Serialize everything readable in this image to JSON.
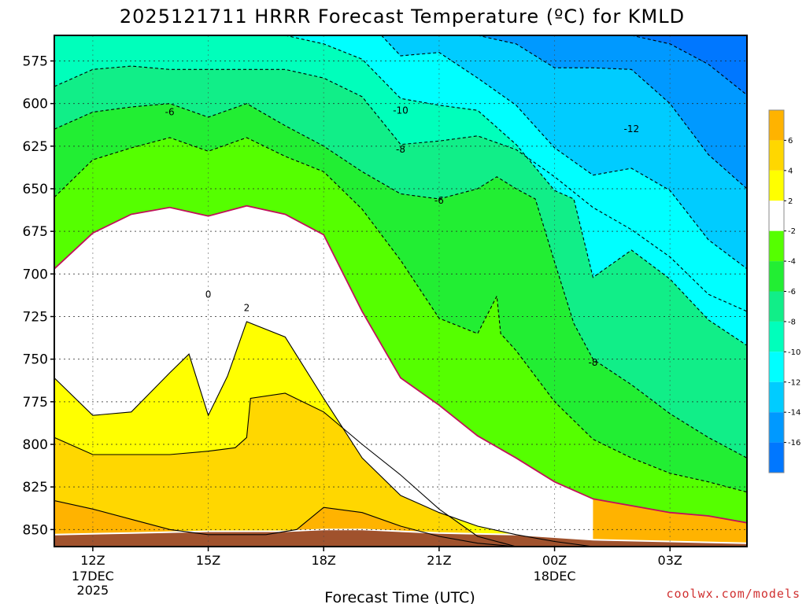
{
  "chart_data": {
    "type": "time-height contour",
    "title": "2025121711 HRRR Forecast Temperature (ºC) for KMLD",
    "xlabel": "Forecast Time (UTC)",
    "ylabel": "",
    "y_axis": {
      "ticks": [
        575,
        600,
        625,
        650,
        675,
        700,
        725,
        750,
        775,
        800,
        825,
        850
      ],
      "range": [
        860,
        560
      ],
      "inverted": true
    },
    "x_axis": {
      "ticks": [
        {
          "hour": 12,
          "label": "12Z",
          "date": "17DEC",
          "year": "2025"
        },
        {
          "hour": 15,
          "label": "15Z",
          "date": "",
          "year": ""
        },
        {
          "hour": 18,
          "label": "18Z",
          "date": "",
          "year": ""
        },
        {
          "hour": 21,
          "label": "21Z",
          "date": "",
          "year": ""
        },
        {
          "hour": 24,
          "label": "00Z",
          "date": "18DEC",
          "year": ""
        },
        {
          "hour": 27,
          "label": "03Z",
          "date": "",
          "year": ""
        }
      ],
      "range": [
        11,
        29
      ]
    },
    "grid": "dotted",
    "colorbar": {
      "placement": "right",
      "labels": [
        "6",
        "4",
        "2",
        "-2",
        "-4",
        "-6",
        "-8",
        "-10",
        "-12",
        "-14",
        "-16"
      ],
      "colors": [
        "#ffb300",
        "#ffd700",
        "#ffff00",
        "#ffffff",
        "#55ff00",
        "#22ee33",
        "#11ee88",
        "#00ffbb",
        "#00ffff",
        "#00ccff",
        "#0099ff",
        "#0077ff"
      ]
    },
    "contours": [
      {
        "value": 6,
        "color": "#ffb300",
        "points": [
          [
            11.0,
            833
          ],
          [
            12.0,
            838
          ],
          [
            13.0,
            844
          ],
          [
            14.0,
            850
          ],
          [
            15.0,
            853
          ],
          [
            16.5,
            853
          ],
          [
            17.3,
            850
          ],
          [
            18.0,
            837
          ],
          [
            19.0,
            840
          ],
          [
            20.0,
            848
          ],
          [
            21.0,
            854
          ],
          [
            22.0,
            858
          ],
          [
            23.0,
            860
          ]
        ]
      },
      {
        "value": 4,
        "color": "#ffd700",
        "points": [
          [
            11.0,
            796
          ],
          [
            12.0,
            806
          ],
          [
            14.0,
            806
          ],
          [
            15.0,
            804
          ],
          [
            15.7,
            802
          ],
          [
            16.0,
            796
          ],
          [
            16.1,
            773
          ],
          [
            17.0,
            770
          ],
          [
            18.0,
            781
          ],
          [
            19.0,
            800
          ],
          [
            20.0,
            818
          ],
          [
            21.0,
            838
          ],
          [
            22.0,
            854
          ],
          [
            23.0,
            860
          ]
        ]
      },
      {
        "value": 2,
        "color": "#ffff00",
        "points": [
          [
            11.0,
            761
          ],
          [
            12.0,
            783
          ],
          [
            13.0,
            781
          ],
          [
            14.0,
            758
          ],
          [
            14.5,
            747
          ],
          [
            15.0,
            783
          ],
          [
            15.5,
            760
          ],
          [
            16.0,
            728
          ],
          [
            17.0,
            737
          ],
          [
            18.0,
            773
          ],
          [
            19.0,
            808
          ],
          [
            20.0,
            830
          ],
          [
            21.0,
            840
          ],
          [
            22.0,
            848
          ],
          [
            23.0,
            853
          ],
          [
            24.0,
            857
          ],
          [
            25.0,
            860
          ]
        ]
      },
      {
        "value": 0,
        "color": "#ffffff",
        "points": [
          [
            11.0,
            697
          ],
          [
            12.0,
            676
          ],
          [
            13.0,
            665
          ],
          [
            14.0,
            661
          ],
          [
            15.0,
            666
          ],
          [
            16.0,
            660
          ],
          [
            17.0,
            665
          ],
          [
            18.0,
            677
          ],
          [
            19.0,
            722
          ],
          [
            20.0,
            761
          ],
          [
            21.0,
            777
          ],
          [
            22.0,
            795
          ],
          [
            23.0,
            808
          ],
          [
            24.0,
            822
          ],
          [
            25.0,
            832
          ],
          [
            26.0,
            836
          ],
          [
            27.0,
            840
          ],
          [
            28.0,
            842
          ],
          [
            29.0,
            846
          ]
        ]
      },
      {
        "value": -2,
        "color": "#55ff00",
        "points": [
          [
            11.0,
            655
          ],
          [
            12.0,
            633
          ],
          [
            13.0,
            626
          ],
          [
            14.0,
            620
          ],
          [
            15.0,
            628
          ],
          [
            16.0,
            620
          ],
          [
            17.0,
            631
          ],
          [
            18.0,
            640
          ],
          [
            19.0,
            662
          ],
          [
            20.0,
            692
          ],
          [
            21.0,
            726
          ],
          [
            22.0,
            735
          ],
          [
            22.5,
            713
          ],
          [
            22.6,
            735
          ],
          [
            23.0,
            745
          ],
          [
            24.0,
            775
          ],
          [
            25.0,
            797
          ],
          [
            26.0,
            808
          ],
          [
            27.0,
            817
          ],
          [
            28.0,
            822
          ],
          [
            29.0,
            828
          ]
        ]
      },
      {
        "value": -4,
        "color": "#22ee33",
        "points": [
          [
            11.0,
            615
          ],
          [
            12.0,
            605
          ],
          [
            13.0,
            602
          ],
          [
            14.0,
            600
          ],
          [
            15.0,
            608
          ],
          [
            16.0,
            600
          ],
          [
            17.0,
            613
          ],
          [
            18.0,
            625
          ],
          [
            19.0,
            640
          ],
          [
            20.0,
            653
          ],
          [
            21.0,
            656
          ],
          [
            22.0,
            650
          ],
          [
            22.5,
            643
          ],
          [
            23.0,
            650
          ],
          [
            23.5,
            656
          ],
          [
            24.0,
            693
          ],
          [
            24.5,
            729
          ],
          [
            25.0,
            750
          ],
          [
            26.0,
            765
          ],
          [
            27.0,
            782
          ],
          [
            28.0,
            796
          ],
          [
            29.0,
            808
          ]
        ]
      },
      {
        "value": -6,
        "color": "#11ee88",
        "points": [
          [
            11.0,
            590
          ],
          [
            12.0,
            580
          ],
          [
            13.0,
            578
          ],
          [
            14.0,
            580
          ],
          [
            15.0,
            580
          ],
          [
            16.0,
            580
          ],
          [
            17.0,
            580
          ],
          [
            18.0,
            585
          ],
          [
            19.0,
            596
          ],
          [
            20.0,
            624
          ],
          [
            21.0,
            622
          ],
          [
            22.0,
            619
          ],
          [
            23.0,
            627
          ],
          [
            24.0,
            643
          ],
          [
            25.0,
            661
          ],
          [
            26.0,
            674
          ],
          [
            27.0,
            690
          ],
          [
            28.0,
            712
          ],
          [
            29.0,
            722
          ]
        ]
      },
      {
        "value": -8,
        "color": "#00ffbb",
        "points": [
          [
            17.0,
            560
          ],
          [
            18.0,
            565
          ],
          [
            19.0,
            574
          ],
          [
            20.0,
            597
          ],
          [
            21.0,
            601
          ],
          [
            22.0,
            604
          ],
          [
            23.0,
            624
          ],
          [
            24.0,
            651
          ],
          [
            24.5,
            656
          ],
          [
            25.0,
            702
          ],
          [
            26.0,
            686
          ],
          [
            27.0,
            703
          ],
          [
            28.0,
            727
          ],
          [
            29.0,
            742
          ]
        ]
      },
      {
        "value": -10,
        "color": "#00ffff",
        "points": [
          [
            19.5,
            560
          ],
          [
            20.0,
            572
          ],
          [
            21.0,
            570
          ],
          [
            22.0,
            585
          ],
          [
            23.0,
            601
          ],
          [
            24.0,
            626
          ],
          [
            25.0,
            642
          ],
          [
            26.0,
            638
          ],
          [
            27.0,
            651
          ],
          [
            28.0,
            680
          ],
          [
            29.0,
            697
          ]
        ]
      },
      {
        "value": -12,
        "color": "#00ccff",
        "points": [
          [
            22.0,
            560
          ],
          [
            23.0,
            565
          ],
          [
            24.0,
            579
          ],
          [
            25.0,
            579
          ],
          [
            26.0,
            580
          ],
          [
            27.0,
            600
          ],
          [
            28.0,
            630
          ],
          [
            29.0,
            650
          ]
        ]
      },
      {
        "value": -14,
        "color": "#0099ff",
        "points": [
          [
            26.0,
            560
          ],
          [
            27.0,
            565
          ],
          [
            28.0,
            577
          ],
          [
            29.0,
            595
          ]
        ]
      }
    ],
    "contour_labels": [
      "6",
      "4",
      "2",
      "0",
      "-2",
      "-4",
      "-6",
      "-8",
      "-10",
      "-12",
      "-14"
    ],
    "annotations": [
      "-6",
      "-10",
      "-8",
      "-6",
      "-12",
      "-8",
      "0",
      "2"
    ]
  },
  "footer": {
    "credit": "coolwx.com/models"
  }
}
